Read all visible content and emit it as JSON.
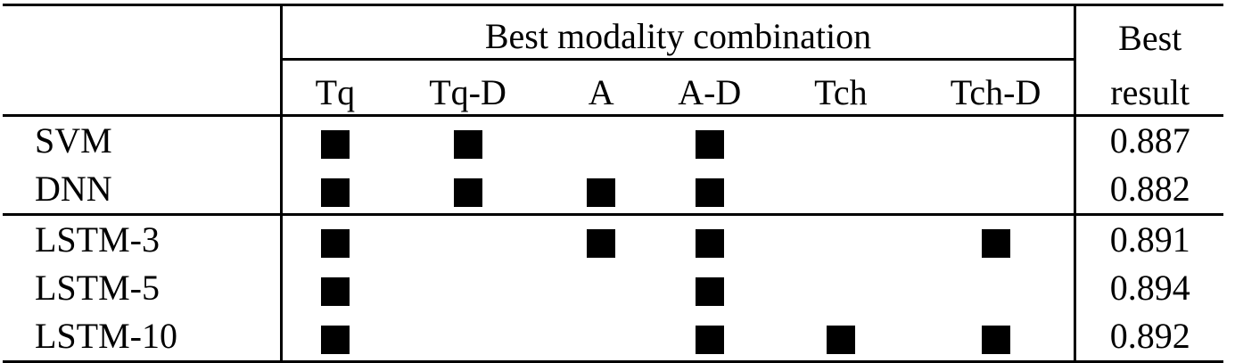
{
  "header": {
    "group_label": "Best modality combination",
    "result_label_line1": "Best",
    "result_label_line2": "result",
    "columns": [
      "Tq",
      "Tq-D",
      "A",
      "A-D",
      "Tch",
      "Tch-D"
    ]
  },
  "rows": [
    {
      "model": "SVM",
      "marks": [
        true,
        true,
        false,
        true,
        false,
        false
      ],
      "result": "0.887"
    },
    {
      "model": "DNN",
      "marks": [
        true,
        true,
        true,
        true,
        false,
        false
      ],
      "result": "0.882"
    },
    {
      "model": "LSTM-3",
      "marks": [
        true,
        false,
        true,
        true,
        false,
        true
      ],
      "result": "0.891"
    },
    {
      "model": "LSTM-5",
      "marks": [
        true,
        false,
        false,
        true,
        false,
        false
      ],
      "result": "0.894"
    },
    {
      "model": "LSTM-10",
      "marks": [
        true,
        false,
        false,
        true,
        true,
        true
      ],
      "result": "0.892"
    }
  ]
}
